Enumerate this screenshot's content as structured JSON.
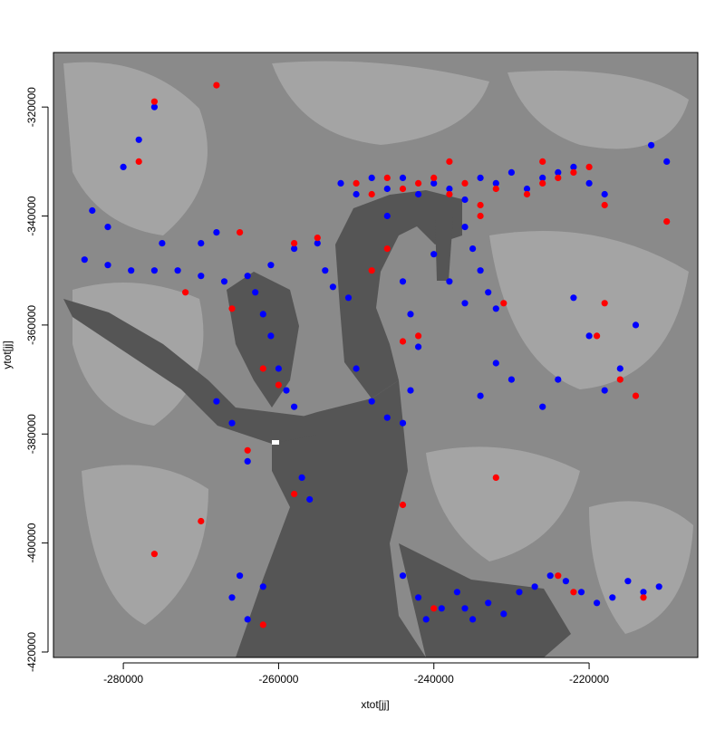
{
  "chart_data": {
    "type": "scatter",
    "title": "",
    "xlabel": "xtot[jj]",
    "ylabel": "ytot[jj]",
    "xlim": [
      -289000,
      -206000
    ],
    "ylim": [
      -421000,
      -310000
    ],
    "x_ticks": [
      -280000,
      -260000,
      -240000,
      -220000
    ],
    "y_ticks": [
      -420000,
      -400000,
      -380000,
      -360000,
      -340000,
      -320000
    ],
    "x_tick_labels": [
      "-280000",
      "-260000",
      "-240000",
      "-220000"
    ],
    "y_tick_labels": [
      "-420000",
      "-400000",
      "-380000",
      "-360000",
      "-340000",
      "-320000"
    ],
    "background": "grayscale raster map of a valley/fjord system",
    "colors": {
      "blue_points": "#0000ff",
      "red_points": "#ff0000",
      "raster_dark": "#555555",
      "raster_mid": "#8a8a8a",
      "raster_light": "#a6a6a6"
    },
    "series": [
      {
        "color_name": "blue",
        "x": [
          -252000,
          -250000,
          -248000,
          -246000,
          -244000,
          -242000,
          -240000,
          -238000,
          -236000,
          -234000,
          -232000,
          -230000,
          -228000,
          -226000,
          -224000,
          -222000,
          -220000,
          -218000,
          -255000,
          -258000,
          -261000,
          -264000,
          -267000,
          -270000,
          -273000,
          -276000,
          -279000,
          -282000,
          -285000,
          -254000,
          -253000,
          -251000,
          -246000,
          -244000,
          -243000,
          -242000,
          -243000,
          -244000,
          -236000,
          -235000,
          -234000,
          -233000,
          -232000,
          -258000,
          -259000,
          -260000,
          -261000,
          -262000,
          -263000,
          -257000,
          -256000,
          -265000,
          -266000,
          -264000,
          -262000,
          -244000,
          -242000,
          -241000,
          -239000,
          -237000,
          -236000,
          -235000,
          -233000,
          -231000,
          -229000,
          -227000,
          -225000,
          -223000,
          -221000,
          -219000,
          -217000,
          -215000,
          -213000,
          -211000,
          -280000,
          -278000,
          -276000,
          -284000,
          -282000,
          -275000,
          -270000,
          -268000,
          -240000,
          -238000,
          -236000,
          -226000,
          -224000,
          -218000,
          -216000,
          -214000,
          -210000,
          -212000,
          -232000,
          -230000,
          -234000,
          -222000,
          -220000,
          -250000,
          -248000,
          -246000,
          -268000,
          -266000,
          -264000
        ],
        "y": [
          -334000,
          -336000,
          -333000,
          -335000,
          -333000,
          -336000,
          -334000,
          -335000,
          -337000,
          -333000,
          -334000,
          -332000,
          -335000,
          -333000,
          -332000,
          -331000,
          -334000,
          -336000,
          -345000,
          -346000,
          -349000,
          -351000,
          -352000,
          -351000,
          -350000,
          -350000,
          -350000,
          -349000,
          -348000,
          -350000,
          -353000,
          -355000,
          -340000,
          -352000,
          -358000,
          -364000,
          -372000,
          -378000,
          -342000,
          -346000,
          -350000,
          -354000,
          -357000,
          -375000,
          -372000,
          -368000,
          -362000,
          -358000,
          -354000,
          -388000,
          -392000,
          -406000,
          -410000,
          -414000,
          -408000,
          -406000,
          -410000,
          -414000,
          -412000,
          -409000,
          -412000,
          -414000,
          -411000,
          -413000,
          -409000,
          -408000,
          -406000,
          -407000,
          -409000,
          -411000,
          -410000,
          -407000,
          -409000,
          -408000,
          -331000,
          -326000,
          -320000,
          -339000,
          -342000,
          -345000,
          -345000,
          -343000,
          -347000,
          -352000,
          -356000,
          -375000,
          -370000,
          -372000,
          -368000,
          -360000,
          -330000,
          -327000,
          -367000,
          -370000,
          -373000,
          -355000,
          -362000,
          -368000,
          -374000,
          -377000,
          -374000,
          -378000,
          -385000
        ],
        "note": "approximate sample of the dense blue points (hundreds in original)"
      },
      {
        "color_name": "red",
        "x": [
          -250000,
          -248000,
          -246000,
          -244000,
          -242000,
          -240000,
          -238000,
          -236000,
          -234000,
          -232000,
          -228000,
          -226000,
          -224000,
          -222000,
          -220000,
          -218000,
          -276000,
          -278000,
          -268000,
          -265000,
          -258000,
          -255000,
          -246000,
          -244000,
          -242000,
          -238000,
          -234000,
          -231000,
          -226000,
          -218000,
          -216000,
          -214000,
          -272000,
          -266000,
          -264000,
          -262000,
          -260000,
          -258000,
          -244000,
          -240000,
          -232000,
          -224000,
          -222000,
          -219000,
          -213000,
          -210000,
          -276000,
          -270000,
          -262000,
          -248000
        ],
        "y": [
          -334000,
          -336000,
          -333000,
          -335000,
          -334000,
          -333000,
          -336000,
          -334000,
          -338000,
          -335000,
          -336000,
          -334000,
          -333000,
          -332000,
          -331000,
          -338000,
          -319000,
          -330000,
          -316000,
          -343000,
          -345000,
          -344000,
          -346000,
          -363000,
          -362000,
          -330000,
          -340000,
          -356000,
          -330000,
          -356000,
          -370000,
          -373000,
          -354000,
          -357000,
          -383000,
          -368000,
          -371000,
          -391000,
          -393000,
          -412000,
          -388000,
          -406000,
          -409000,
          -362000,
          -410000,
          -341000,
          -402000,
          -396000,
          -415000,
          -350000
        ],
        "note": "approximate sample of the red points"
      }
    ]
  }
}
